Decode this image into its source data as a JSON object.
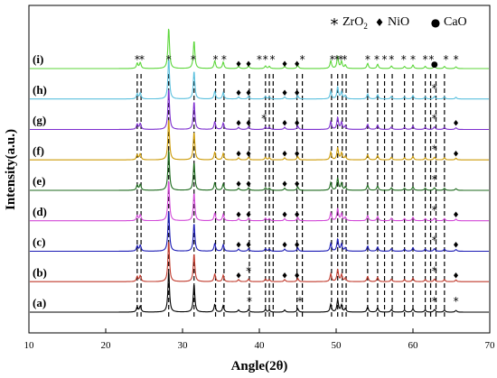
{
  "chart_data": {
    "type": "line",
    "title": "",
    "xlabel": "Angle(2θ)",
    "ylabel": "Intensity(a.u.)",
    "xlim": [
      10,
      70
    ],
    "x_ticks": [
      10,
      20,
      30,
      40,
      50,
      60,
      70
    ],
    "legend": [
      {
        "symbol": "*",
        "label": "ZrO",
        "subscript": "2",
        "phase": "zro2"
      },
      {
        "symbol": "♦",
        "label": "NiO",
        "subscript": "",
        "phase": "nio"
      },
      {
        "symbol": "●",
        "label": "CaO",
        "subscript": "",
        "phase": "cao"
      }
    ],
    "legend_placement": "top-right",
    "reference_lines_2theta": [
      24.1,
      24.6,
      28.2,
      31.5,
      34.3,
      35.4,
      38.7,
      40.8,
      41.3,
      41.8,
      44.9,
      45.6,
      49.4,
      50.2,
      50.8,
      51.3,
      54.1,
      55.4,
      56.3,
      57.3,
      58.9,
      60.0,
      61.6,
      62.3,
      63.0,
      64.1
    ],
    "peaks": [
      {
        "pos": 24.1,
        "height": 0.12
      },
      {
        "pos": 24.5,
        "height": 0.14
      },
      {
        "pos": 28.2,
        "height": 0.95
      },
      {
        "pos": 31.5,
        "height": 0.65
      },
      {
        "pos": 34.2,
        "height": 0.18
      },
      {
        "pos": 35.3,
        "height": 0.15
      },
      {
        "pos": 37.3,
        "height": 0.05
      },
      {
        "pos": 38.6,
        "height": 0.06
      },
      {
        "pos": 40.8,
        "height": 0.06
      },
      {
        "pos": 41.3,
        "height": 0.05
      },
      {
        "pos": 43.3,
        "height": 0.05
      },
      {
        "pos": 45.0,
        "height": 0.08
      },
      {
        "pos": 49.3,
        "height": 0.18
      },
      {
        "pos": 50.2,
        "height": 0.28
      },
      {
        "pos": 50.7,
        "height": 0.16
      },
      {
        "pos": 51.2,
        "height": 0.08
      },
      {
        "pos": 54.1,
        "height": 0.12
      },
      {
        "pos": 55.4,
        "height": 0.1
      },
      {
        "pos": 57.2,
        "height": 0.06
      },
      {
        "pos": 58.9,
        "height": 0.05
      },
      {
        "pos": 60.0,
        "height": 0.08
      },
      {
        "pos": 61.6,
        "height": 0.05
      },
      {
        "pos": 62.8,
        "height": 0.06
      },
      {
        "pos": 64.1,
        "height": 0.05
      },
      {
        "pos": 65.6,
        "height": 0.04
      }
    ],
    "series": [
      {
        "label": "(a)",
        "color": "#000000"
      },
      {
        "label": "(b)",
        "color": "#c0392b"
      },
      {
        "label": "(c)",
        "color": "#1a1ab4"
      },
      {
        "label": "(d)",
        "color": "#d24ad8"
      },
      {
        "label": "(e)",
        "color": "#1d6a1d"
      },
      {
        "label": "(f)",
        "color": "#cc9a06"
      },
      {
        "label": "(g)",
        "color": "#7d2ecf"
      },
      {
        "label": "(h)",
        "color": "#5bc0de"
      },
      {
        "label": "(i)",
        "color": "#5cd63a"
      }
    ],
    "markers": [
      {
        "series": "(i)",
        "items": [
          [
            "zro2",
            24.1
          ],
          [
            "zro2",
            24.7
          ],
          [
            "zro2",
            28.2
          ],
          [
            "zro2",
            31.4
          ],
          [
            "zro2",
            34.3
          ],
          [
            "zro2",
            35.4
          ],
          [
            "nio",
            37.3
          ],
          [
            "nio",
            38.6
          ],
          [
            "zro2",
            40.0
          ],
          [
            "zro2",
            40.8
          ],
          [
            "zro2",
            41.7
          ],
          [
            "nio",
            43.3
          ],
          [
            "nio",
            44.9
          ],
          [
            "zro2",
            45.6
          ],
          [
            "zro2",
            49.5
          ],
          [
            "zro2",
            50.1
          ],
          [
            "zro2",
            50.6
          ],
          [
            "zro2",
            51.1
          ],
          [
            "zro2",
            54.1
          ],
          [
            "zro2",
            55.3
          ],
          [
            "zro2",
            56.3
          ],
          [
            "zro2",
            57.2
          ],
          [
            "zro2",
            58.8
          ],
          [
            "zro2",
            60.0
          ],
          [
            "zro2",
            61.6
          ],
          [
            "zro2",
            62.4
          ],
          [
            "cao",
            62.8
          ],
          [
            "zro2",
            64.3
          ],
          [
            "zro2",
            65.6
          ]
        ]
      },
      {
        "series": "(h)",
        "items": [
          [
            "nio",
            37.3
          ],
          [
            "nio",
            38.6
          ],
          [
            "nio",
            43.3
          ],
          [
            "nio",
            44.9
          ],
          [
            "zro2",
            62.8
          ]
        ]
      },
      {
        "series": "(g)",
        "items": [
          [
            "nio",
            37.3
          ],
          [
            "nio",
            38.6
          ],
          [
            "zro2",
            40.6
          ],
          [
            "nio",
            43.3
          ],
          [
            "nio",
            44.9
          ],
          [
            "zro2",
            62.8
          ],
          [
            "nio",
            65.6
          ]
        ]
      },
      {
        "series": "(f)",
        "items": [
          [
            "nio",
            37.3
          ],
          [
            "nio",
            38.6
          ],
          [
            "nio",
            43.3
          ],
          [
            "nio",
            44.9
          ],
          [
            "zro2",
            62.8
          ],
          [
            "nio",
            65.6
          ]
        ]
      },
      {
        "series": "(e)",
        "items": [
          [
            "nio",
            37.3
          ],
          [
            "nio",
            38.6
          ],
          [
            "nio",
            43.3
          ],
          [
            "nio",
            44.9
          ],
          [
            "zro2",
            62.8
          ]
        ]
      },
      {
        "series": "(d)",
        "items": [
          [
            "nio",
            37.3
          ],
          [
            "nio",
            38.6
          ],
          [
            "nio",
            43.3
          ],
          [
            "nio",
            44.9
          ],
          [
            "zro2",
            62.8
          ],
          [
            "nio",
            65.6
          ]
        ]
      },
      {
        "series": "(c)",
        "items": [
          [
            "nio",
            37.3
          ],
          [
            "nio",
            38.6
          ],
          [
            "nio",
            43.3
          ],
          [
            "nio",
            44.9
          ],
          [
            "zro2",
            62.8
          ],
          [
            "nio",
            65.6
          ]
        ]
      },
      {
        "series": "(b)",
        "items": [
          [
            "nio",
            37.3
          ],
          [
            "zro2",
            38.6
          ],
          [
            "nio",
            43.3
          ],
          [
            "nio",
            44.9
          ],
          [
            "zro2",
            62.8
          ],
          [
            "nio",
            65.6
          ]
        ]
      },
      {
        "series": "(a)",
        "items": [
          [
            "zro2",
            38.7
          ],
          [
            "zro2",
            45.3
          ],
          [
            "zro2",
            62.8
          ],
          [
            "zro2",
            65.6
          ]
        ]
      }
    ]
  }
}
